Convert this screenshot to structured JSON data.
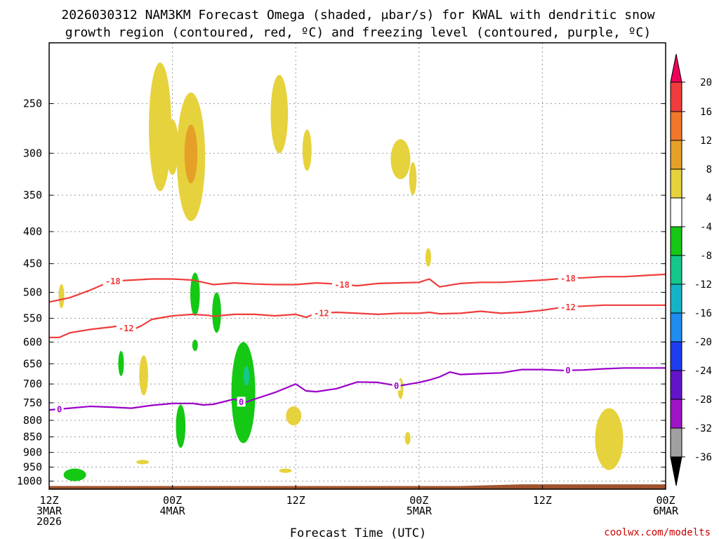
{
  "chart_data": {
    "type": "heatmap",
    "title": "2026030312 NAM3KM Forecast Omega (shaded, μbar/s) for KWAL with dendritic snow",
    "subtitle": "growth region (contoured, red, ºC) and freezing level (contoured, purple, ºC)",
    "xlabel": "Forecast Time (UTC)",
    "ylabel": "",
    "credit": "coolwx.com/modelts",
    "x_hours_range": [
      0,
      60
    ],
    "y_pressure_range": [
      1030,
      200
    ],
    "x_ticks": [
      {
        "hour": 0,
        "line1": "12Z",
        "line2": "3MAR",
        "line3": "2026"
      },
      {
        "hour": 12,
        "line1": "00Z",
        "line2": "4MAR",
        "line3": ""
      },
      {
        "hour": 24,
        "line1": "12Z",
        "line2": "",
        "line3": ""
      },
      {
        "hour": 36,
        "line1": "00Z",
        "line2": "5MAR",
        "line3": ""
      },
      {
        "hour": 48,
        "line1": "12Z",
        "line2": "",
        "line3": ""
      },
      {
        "hour": 60,
        "line1": "00Z",
        "line2": "6MAR",
        "line3": ""
      }
    ],
    "y_ticks": [
      250,
      300,
      350,
      400,
      450,
      500,
      550,
      600,
      650,
      700,
      750,
      800,
      850,
      900,
      950,
      1000
    ],
    "grid": true,
    "colorbar": {
      "labels": [
        "20",
        "16",
        "12",
        "8",
        "4",
        "-4",
        "-8",
        "-12",
        "-16",
        "-20",
        "-24",
        "-28",
        "-32",
        "-36"
      ],
      "colors": [
        "#f0005a",
        "#f03c3c",
        "#f07828",
        "#e6a028",
        "#e6d23c",
        "#ffffff",
        "#14c814",
        "#14c88c",
        "#14b4c8",
        "#1e8cf0",
        "#1e3cf0",
        "#6414c8",
        "#a014c8",
        "#a0a0a0",
        "#000000"
      ]
    },
    "contours": [
      {
        "name": "dgz_minus18",
        "label": "-18",
        "color": "#f03c3c",
        "points": [
          [
            0,
            518
          ],
          [
            2,
            510
          ],
          [
            4,
            496
          ],
          [
            6,
            480
          ],
          [
            8,
            478
          ],
          [
            10,
            476
          ],
          [
            12,
            476
          ],
          [
            14,
            478
          ],
          [
            15.5,
            484
          ],
          [
            16,
            486
          ],
          [
            18,
            483
          ],
          [
            20,
            485
          ],
          [
            22,
            486
          ],
          [
            24,
            486
          ],
          [
            26,
            483
          ],
          [
            28,
            485
          ],
          [
            30,
            488
          ],
          [
            32,
            484
          ],
          [
            34,
            483
          ],
          [
            36,
            482
          ],
          [
            37,
            476
          ],
          [
            38,
            490
          ],
          [
            40,
            484
          ],
          [
            42,
            482
          ],
          [
            44,
            482
          ],
          [
            46,
            480
          ],
          [
            48,
            478
          ],
          [
            50,
            475
          ],
          [
            52,
            474
          ],
          [
            54,
            472
          ],
          [
            56,
            472
          ],
          [
            58,
            470
          ],
          [
            60,
            468
          ]
        ],
        "label_hours": [
          6.2,
          28.5,
          50.5
        ]
      },
      {
        "name": "dgz_minus12",
        "label": "-12",
        "color": "#f03c3c",
        "points": [
          [
            0,
            590
          ],
          [
            1,
            590
          ],
          [
            2,
            580
          ],
          [
            4,
            573
          ],
          [
            6,
            568
          ],
          [
            7,
            565
          ],
          [
            8,
            575
          ],
          [
            9,
            565
          ],
          [
            10,
            552
          ],
          [
            12,
            545
          ],
          [
            14,
            542
          ],
          [
            15.5,
            544
          ],
          [
            16,
            546
          ],
          [
            18,
            542
          ],
          [
            20,
            542
          ],
          [
            22,
            545
          ],
          [
            24,
            542
          ],
          [
            25,
            548
          ],
          [
            26,
            540
          ],
          [
            28,
            538
          ],
          [
            30,
            540
          ],
          [
            32,
            542
          ],
          [
            34,
            540
          ],
          [
            36,
            540
          ],
          [
            37,
            538
          ],
          [
            38,
            541
          ],
          [
            40,
            540
          ],
          [
            42,
            536
          ],
          [
            44,
            540
          ],
          [
            46,
            538
          ],
          [
            48,
            534
          ],
          [
            50,
            528
          ],
          [
            52,
            526
          ],
          [
            54,
            524
          ],
          [
            56,
            524
          ],
          [
            58,
            524
          ],
          [
            60,
            524
          ]
        ],
        "label_hours": [
          7.5,
          26.5,
          50.5
        ]
      },
      {
        "name": "freezing_level",
        "label": "0",
        "color": "#9b00c8",
        "points": [
          [
            0,
            770
          ],
          [
            2,
            765
          ],
          [
            4,
            760
          ],
          [
            6,
            762
          ],
          [
            8,
            765
          ],
          [
            10,
            757
          ],
          [
            12,
            752
          ],
          [
            14,
            752
          ],
          [
            15,
            756
          ],
          [
            16,
            754
          ],
          [
            18,
            740
          ],
          [
            19,
            750
          ],
          [
            20,
            740
          ],
          [
            22,
            722
          ],
          [
            24,
            700
          ],
          [
            25,
            718
          ],
          [
            26,
            720
          ],
          [
            28,
            712
          ],
          [
            30,
            695
          ],
          [
            32,
            696
          ],
          [
            34,
            705
          ],
          [
            36,
            696
          ],
          [
            37,
            690
          ],
          [
            38,
            682
          ],
          [
            39,
            670
          ],
          [
            40,
            676
          ],
          [
            42,
            674
          ],
          [
            44,
            672
          ],
          [
            46,
            664
          ],
          [
            48,
            664
          ],
          [
            50,
            666
          ],
          [
            52,
            665
          ],
          [
            54,
            662
          ],
          [
            56,
            660
          ],
          [
            58,
            660
          ],
          [
            60,
            660
          ]
        ],
        "label_hours": [
          1,
          18.7,
          33.8,
          50.5
        ]
      }
    ],
    "shaded_regions": [
      {
        "name": "shade-upper-a",
        "hour": 10.8,
        "pressure_top": 215,
        "pressure_bottom": 345,
        "value": 6
      },
      {
        "name": "shade-upper-b",
        "hour": 12.0,
        "pressure_top": 265,
        "pressure_bottom": 325,
        "value": 5
      },
      {
        "name": "shade-upper-c",
        "hour": 13.8,
        "pressure_top": 240,
        "pressure_bottom": 385,
        "value": 6
      },
      {
        "name": "shade-core-c",
        "hour": 13.8,
        "pressure_top": 270,
        "pressure_bottom": 335,
        "value": 9
      },
      {
        "name": "shade-upper-d",
        "hour": 22.4,
        "pressure_top": 225,
        "pressure_bottom": 300,
        "value": 5
      },
      {
        "name": "shade-upper-e",
        "hour": 25.1,
        "pressure_top": 275,
        "pressure_bottom": 320,
        "value": 5
      },
      {
        "name": "shade-upper-f",
        "hour": 34.2,
        "pressure_top": 285,
        "pressure_bottom": 330,
        "value": 5
      },
      {
        "name": "shade-upper-g",
        "hour": 35.4,
        "pressure_top": 310,
        "pressure_bottom": 350,
        "value": 5
      },
      {
        "name": "shade-mid-a",
        "hour": 36.9,
        "pressure_top": 425,
        "pressure_bottom": 455,
        "value": 5
      },
      {
        "name": "shade-mid-b",
        "hour": 1.2,
        "pressure_top": 485,
        "pressure_bottom": 530,
        "value": 5
      },
      {
        "name": "shade-mid-c",
        "hour": 14.2,
        "pressure_top": 465,
        "pressure_bottom": 545,
        "value": -6
      },
      {
        "name": "shade-mid-d",
        "hour": 16.3,
        "pressure_top": 500,
        "pressure_bottom": 580,
        "value": -6
      },
      {
        "name": "shade-mid-e",
        "hour": 14.2,
        "pressure_top": 595,
        "pressure_bottom": 620,
        "value": -6
      },
      {
        "name": "shade-low-a",
        "hour": 7.0,
        "pressure_top": 620,
        "pressure_bottom": 680,
        "value": -6
      },
      {
        "name": "shade-low-b",
        "hour": 9.2,
        "pressure_top": 630,
        "pressure_bottom": 730,
        "value": 5
      },
      {
        "name": "shade-low-c",
        "hour": 18.9,
        "pressure_top": 600,
        "pressure_bottom": 870,
        "value": -7
      },
      {
        "name": "shade-core-low-c",
        "hour": 19.2,
        "pressure_top": 655,
        "pressure_bottom": 705,
        "value": -9
      },
      {
        "name": "shade-low-d",
        "hour": 12.8,
        "pressure_top": 755,
        "pressure_bottom": 885,
        "value": -6
      },
      {
        "name": "shade-low-e",
        "hour": 23.8,
        "pressure_top": 760,
        "pressure_bottom": 815,
        "value": 6
      },
      {
        "name": "shade-low-f",
        "hour": 34.2,
        "pressure_top": 685,
        "pressure_bottom": 740,
        "value": 5
      },
      {
        "name": "shade-low-g",
        "hour": 34.9,
        "pressure_top": 835,
        "pressure_bottom": 875,
        "value": 5
      },
      {
        "name": "shade-low-h",
        "hour": 2.5,
        "pressure_top": 955,
        "pressure_bottom": 1000,
        "value": -6
      },
      {
        "name": "shade-low-i",
        "hour": 9.1,
        "pressure_top": 925,
        "pressure_bottom": 940,
        "value": 5
      },
      {
        "name": "shade-low-j",
        "hour": 23.0,
        "pressure_top": 955,
        "pressure_bottom": 970,
        "value": 5
      },
      {
        "name": "shade-low-k",
        "hour": 54.5,
        "pressure_top": 765,
        "pressure_bottom": 960,
        "value": 5
      }
    ],
    "terrain": {
      "color": "#a0522d",
      "surface_pressure_start": 1018,
      "surface_pressure_end": 1012
    }
  }
}
